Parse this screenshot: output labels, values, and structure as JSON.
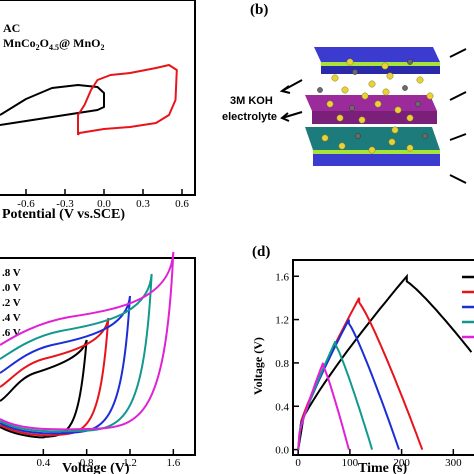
{
  "chart_data": [
    {
      "panel": "a",
      "type": "line",
      "xlabel": "Potential (V vs.SCE)",
      "ticks_x": [
        "-0.6",
        "-0.3",
        "0.0",
        "0.3",
        "0.6"
      ],
      "xlim": [
        -0.8,
        0.7
      ],
      "legend": [
        "AC",
        "MnCo2O4.5@ MnO2"
      ],
      "series": [
        {
          "name": "AC",
          "color": "#000000",
          "x": [
            -0.8,
            -0.6,
            -0.4,
            -0.2,
            -0.05,
            0.0,
            0.0,
            -0.05,
            -0.2,
            -0.4,
            -0.6,
            -0.8
          ],
          "y": [
            70,
            74,
            78,
            82,
            85,
            88,
            102,
            108,
            110,
            107,
            96,
            80
          ]
        },
        {
          "name": "MnCo2O4.5@ MnO2",
          "color": "#e8141b",
          "x": [
            -0.2,
            -0.19,
            0.0,
            0.2,
            0.4,
            0.5,
            0.55,
            0.56,
            0.5,
            0.4,
            0.2,
            0.05,
            -0.05,
            -0.1,
            -0.15,
            -0.2,
            -0.2
          ],
          "y": [
            60,
            62,
            66,
            68,
            72,
            80,
            95,
            125,
            130,
            127,
            122,
            120,
            115,
            105,
            90,
            80,
            60
          ]
        }
      ]
    },
    {
      "panel": "b",
      "type": "diagram",
      "label": "3M KOH\nelectrolyte"
    },
    {
      "panel": "c",
      "type": "line",
      "xlabel": "Voltage (V)",
      "ticks_x": [
        "0.4",
        "0.8",
        "1.2",
        "1.6"
      ],
      "xlim": [
        0.0,
        1.8
      ],
      "legend": [
        ".8 V",
        ".0 V",
        ".2 V",
        ".4 V",
        ".6 V"
      ],
      "series": [
        {
          "name": ".8 V",
          "color": "#000000",
          "vmax": 0.8
        },
        {
          "name": ".0 V",
          "color": "#e8141b",
          "vmax": 1.0
        },
        {
          "name": ".2 V",
          "color": "#1b2ed6",
          "vmax": 1.2
        },
        {
          "name": ".4 V",
          "color": "#12998f",
          "vmax": 1.4
        },
        {
          "name": ".6 V",
          "color": "#e021d6",
          "vmax": 1.6
        }
      ]
    },
    {
      "panel": "d",
      "type": "line",
      "xlabel": "Time (s)",
      "ylabel": "Voltage (V)",
      "ticks_x": [
        "0",
        "100",
        "200",
        "300"
      ],
      "ticks_y": [
        "0.0",
        "0.4",
        "0.8",
        "1.2",
        "1.6"
      ],
      "xlim": [
        -10,
        340
      ],
      "ylim": [
        -0.05,
        1.75
      ],
      "series": [
        {
          "color": "#000000",
          "peak_t": 210,
          "peak_v": 1.6,
          "end_t": 335,
          "end_v": 0.9
        },
        {
          "color": "#e8141b",
          "peak_t": 118,
          "peak_v": 1.4,
          "end_t": 240,
          "end_v": 0.0
        },
        {
          "color": "#1b2ed6",
          "peak_t": 98,
          "peak_v": 1.2,
          "end_t": 195,
          "end_v": 0.0
        },
        {
          "color": "#12998f",
          "peak_t": 72,
          "peak_v": 1.0,
          "end_t": 143,
          "end_v": 0.0
        },
        {
          "color": "#e021d6",
          "peak_t": 48,
          "peak_v": 0.8,
          "end_t": 98,
          "end_v": 0.0
        }
      ]
    }
  ],
  "labels": {
    "b": "(b)",
    "d": "(d)"
  }
}
